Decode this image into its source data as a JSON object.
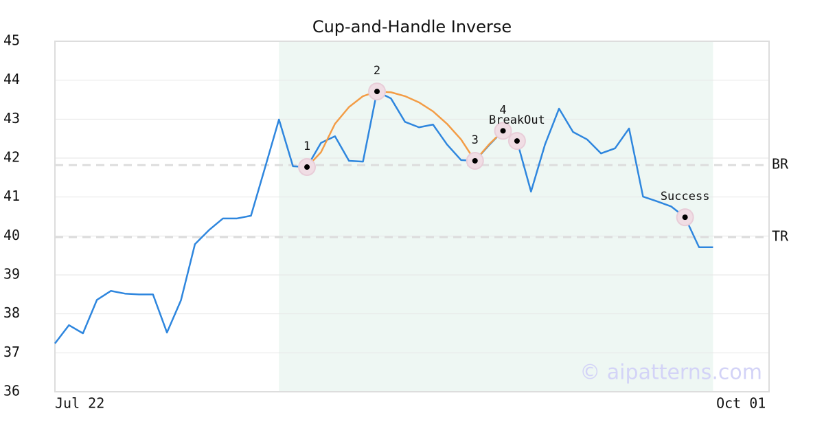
{
  "chart_data": {
    "type": "line",
    "title": "Cup-and-Handle Inverse",
    "xlim": [
      0,
      51
    ],
    "xticks": [
      {
        "value": 0,
        "label": "Jul 22"
      },
      {
        "value": 49,
        "label": "Oct 01"
      }
    ],
    "ylim": [
      36,
      45
    ],
    "yticks": [
      36,
      37,
      38,
      39,
      40,
      41,
      42,
      43,
      44,
      45
    ],
    "grid": true,
    "series": [
      {
        "color": "#2e86de",
        "x": [
          0,
          1,
          2,
          3,
          4,
          5,
          6,
          7,
          8,
          9,
          10,
          11,
          12,
          13,
          14,
          15,
          16,
          17,
          18,
          19,
          20,
          21,
          22,
          23,
          24,
          25,
          26,
          27,
          28,
          29,
          30,
          31,
          32,
          33,
          34,
          35,
          36,
          37,
          38,
          39,
          40,
          41,
          42,
          43,
          44,
          45,
          46,
          47
        ],
        "values": [
          37.24,
          37.71,
          37.5,
          38.36,
          38.59,
          38.52,
          38.5,
          38.5,
          37.52,
          38.35,
          39.79,
          40.15,
          40.45,
          40.45,
          40.52,
          41.75,
          42.99,
          41.79,
          41.77,
          42.39,
          42.56,
          41.93,
          41.91,
          43.71,
          43.53,
          42.93,
          42.79,
          42.86,
          42.35,
          41.95,
          41.93,
          42.33,
          42.7,
          42.44,
          41.14,
          42.35,
          43.27,
          42.67,
          42.48,
          42.12,
          42.25,
          42.76,
          41.01,
          40.89,
          40.76,
          40.48,
          39.71,
          39.71
        ]
      },
      {
        "color": "#f39c45",
        "x": [
          18,
          19,
          20,
          21,
          22,
          23,
          24,
          25,
          26,
          27,
          28,
          29,
          30,
          31,
          32
        ],
        "values": [
          41.77,
          42.15,
          42.88,
          43.31,
          43.59,
          43.71,
          43.69,
          43.59,
          43.43,
          43.2,
          42.88,
          42.48,
          41.93,
          42.35,
          42.7
        ]
      }
    ],
    "shaded_range": [
      16,
      47
    ],
    "shade_color": "#eef7f3",
    "hlines": [
      {
        "label": "BR",
        "value": 41.82
      },
      {
        "label": "TR",
        "value": 39.97
      }
    ],
    "markers": [
      {
        "label": "1",
        "x": 18,
        "y": 41.77
      },
      {
        "label": "2",
        "x": 23,
        "y": 43.71
      },
      {
        "label": "3",
        "x": 30,
        "y": 41.93
      },
      {
        "label": "4",
        "x": 32,
        "y": 42.7
      },
      {
        "label": "BreakOut",
        "x": 33,
        "y": 42.44
      },
      {
        "label": "Success",
        "x": 45,
        "y": 40.48
      }
    ],
    "watermark": "© aipatterns.com"
  }
}
